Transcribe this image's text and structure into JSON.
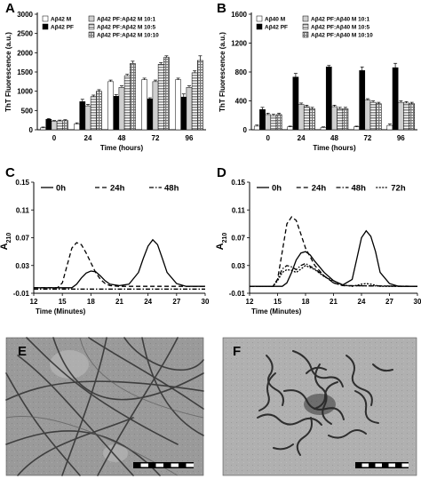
{
  "panel_labels": [
    "A",
    "B",
    "C",
    "D",
    "E",
    "F"
  ],
  "chart_data": [
    {
      "type": "bar",
      "panel": "A",
      "ylabel": "ThT Fluorescence (a.u.)",
      "xlabel": "Time (hours)",
      "ylim": [
        0,
        3000
      ],
      "yticks": [
        0,
        500,
        1000,
        1500,
        2000,
        2500,
        3000
      ],
      "categories": [
        "0",
        "24",
        "48",
        "72",
        "96"
      ],
      "legend_placement": "top-left",
      "series": [
        {
          "name": "Aβ42 M",
          "style": "white",
          "values": [
            50,
            150,
            1250,
            1300,
            1300
          ],
          "errors": [
            20,
            30,
            40,
            40,
            40
          ]
        },
        {
          "name": "Aβ42 PF",
          "style": "black",
          "values": [
            270,
            730,
            870,
            800,
            850
          ],
          "errors": [
            20,
            60,
            40,
            30,
            80
          ]
        },
        {
          "name": "Aβ42 PF:Aβ42 M 10:1",
          "style": "lightgray",
          "values": [
            220,
            620,
            1100,
            1250,
            1100
          ],
          "errors": [
            20,
            40,
            40,
            40,
            40
          ]
        },
        {
          "name": "Aβ42 PF:Aβ42 M 10:5",
          "style": "hlines",
          "values": [
            230,
            860,
            1400,
            1700,
            1480
          ],
          "errors": [
            20,
            40,
            40,
            40,
            50
          ]
        },
        {
          "name": "Aβ42 PF:Aβ42 M 10:10",
          "style": "grid",
          "values": [
            240,
            1000,
            1720,
            1880,
            1800
          ],
          "errors": [
            20,
            40,
            60,
            40,
            120
          ]
        }
      ]
    },
    {
      "type": "bar",
      "panel": "B",
      "ylabel": "ThT Fluorescence (a.u.)",
      "xlabel": "Time (hours)",
      "ylim": [
        0,
        1600
      ],
      "yticks": [
        0,
        400,
        800,
        1200,
        1600
      ],
      "categories": [
        "0",
        "24",
        "48",
        "72",
        "96"
      ],
      "legend_placement": "top-left",
      "series": [
        {
          "name": "Aβ40 M",
          "style": "white",
          "values": [
            50,
            40,
            30,
            40,
            60
          ],
          "errors": [
            15,
            10,
            10,
            10,
            20
          ]
        },
        {
          "name": "Aβ42 PF",
          "style": "black",
          "values": [
            280,
            730,
            870,
            820,
            860
          ],
          "errors": [
            30,
            50,
            20,
            50,
            60
          ]
        },
        {
          "name": "Aβ42 PF:Aβ40 M 10:1",
          "style": "lightgray",
          "values": [
            210,
            350,
            320,
            410,
            380
          ],
          "errors": [
            20,
            20,
            20,
            20,
            20
          ]
        },
        {
          "name": "Aβ42 PF:Aβ40 M 10:5",
          "style": "hlines",
          "values": [
            195,
            320,
            290,
            380,
            370
          ],
          "errors": [
            20,
            20,
            20,
            20,
            20
          ]
        },
        {
          "name": "Aβ42 PF:Aβ40 M 10:10",
          "style": "grid",
          "values": [
            210,
            290,
            290,
            360,
            360
          ],
          "errors": [
            20,
            20,
            20,
            20,
            20
          ]
        }
      ]
    },
    {
      "type": "line",
      "panel": "C",
      "ylabel": "A210",
      "xlabel": "Time (Minutes)",
      "xlim": [
        12,
        30
      ],
      "ylim": [
        -0.01,
        0.15
      ],
      "xticks": [
        12,
        15,
        18,
        21,
        24,
        27,
        30
      ],
      "yticks": [
        -0.01,
        0.03,
        0.07,
        0.11,
        0.15
      ],
      "legend_placement": "top",
      "series": [
        {
          "name": "0h",
          "dash": "solid",
          "x": [
            12,
            16,
            16.5,
            17,
            17.5,
            18,
            18.5,
            19,
            19.5,
            20,
            21,
            22,
            23,
            23.5,
            24,
            24.5,
            25,
            25.5,
            26,
            27,
            28,
            30
          ],
          "y": [
            -0.002,
            -0.002,
            0.003,
            0.012,
            0.019,
            0.022,
            0.021,
            0.015,
            0.008,
            0.003,
            0.001,
            0.003,
            0.02,
            0.04,
            0.058,
            0.067,
            0.06,
            0.04,
            0.02,
            0.004,
            0,
            0
          ]
        },
        {
          "name": "24h",
          "dash": "dashed",
          "x": [
            12,
            14.5,
            15,
            15.5,
            16,
            16.5,
            17,
            17.5,
            18,
            18.5,
            19,
            19.5,
            20,
            21,
            22,
            30
          ],
          "y": [
            -0.002,
            -0.002,
            0.005,
            0.03,
            0.055,
            0.063,
            0.06,
            0.048,
            0.034,
            0.02,
            0.01,
            0.004,
            0.001,
            0,
            0,
            0
          ]
        },
        {
          "name": "48h",
          "dash": "dashdot",
          "x": [
            12,
            30
          ],
          "y": [
            -0.004,
            -0.004
          ]
        }
      ]
    },
    {
      "type": "line",
      "panel": "D",
      "ylabel": "A210",
      "xlabel": "Time (Minutes)",
      "xlim": [
        12,
        30
      ],
      "ylim": [
        -0.01,
        0.15
      ],
      "xticks": [
        12,
        15,
        18,
        21,
        24,
        27,
        30
      ],
      "yticks": [
        -0.01,
        0.03,
        0.07,
        0.11,
        0.15
      ],
      "legend_placement": "top",
      "series": [
        {
          "name": "0h",
          "dash": "solid",
          "x": [
            12,
            15.5,
            16,
            16.5,
            17,
            17.5,
            18,
            18.5,
            19,
            20,
            21,
            22,
            23,
            23.5,
            24,
            24.5,
            25,
            25.5,
            26,
            27,
            28,
            30
          ],
          "y": [
            0,
            0,
            0.005,
            0.02,
            0.038,
            0.048,
            0.05,
            0.045,
            0.036,
            0.02,
            0.008,
            0.002,
            0.01,
            0.04,
            0.07,
            0.08,
            0.072,
            0.05,
            0.02,
            0.004,
            0,
            0
          ]
        },
        {
          "name": "24h",
          "dash": "dashed",
          "x": [
            12,
            14.5,
            15,
            15.5,
            16,
            16.5,
            17,
            17.5,
            18,
            19,
            20,
            21,
            22,
            30
          ],
          "y": [
            0,
            0,
            0.01,
            0.05,
            0.09,
            0.1,
            0.095,
            0.075,
            0.055,
            0.03,
            0.015,
            0.005,
            0.001,
            0
          ]
        },
        {
          "name": "48h",
          "dash": "dashdot",
          "x": [
            12,
            14.5,
            15,
            15.5,
            16,
            16.5,
            17,
            17.5,
            18,
            19,
            20,
            21,
            22,
            30
          ],
          "y": [
            0,
            0,
            0.01,
            0.025,
            0.03,
            0.028,
            0.024,
            0.03,
            0.033,
            0.025,
            0.015,
            0.005,
            0.001,
            0
          ]
        },
        {
          "name": "72h",
          "dash": "dotted",
          "x": [
            12,
            14.5,
            15,
            15.5,
            16,
            16.5,
            17,
            17.5,
            18,
            19,
            20,
            22,
            23,
            24,
            24.5,
            25,
            26,
            30
          ],
          "y": [
            0,
            0,
            0.008,
            0.02,
            0.024,
            0.023,
            0.02,
            0.025,
            0.03,
            0.024,
            0.014,
            0.002,
            0,
            0.003,
            0.004,
            0.003,
            0,
            0
          ]
        }
      ]
    }
  ]
}
